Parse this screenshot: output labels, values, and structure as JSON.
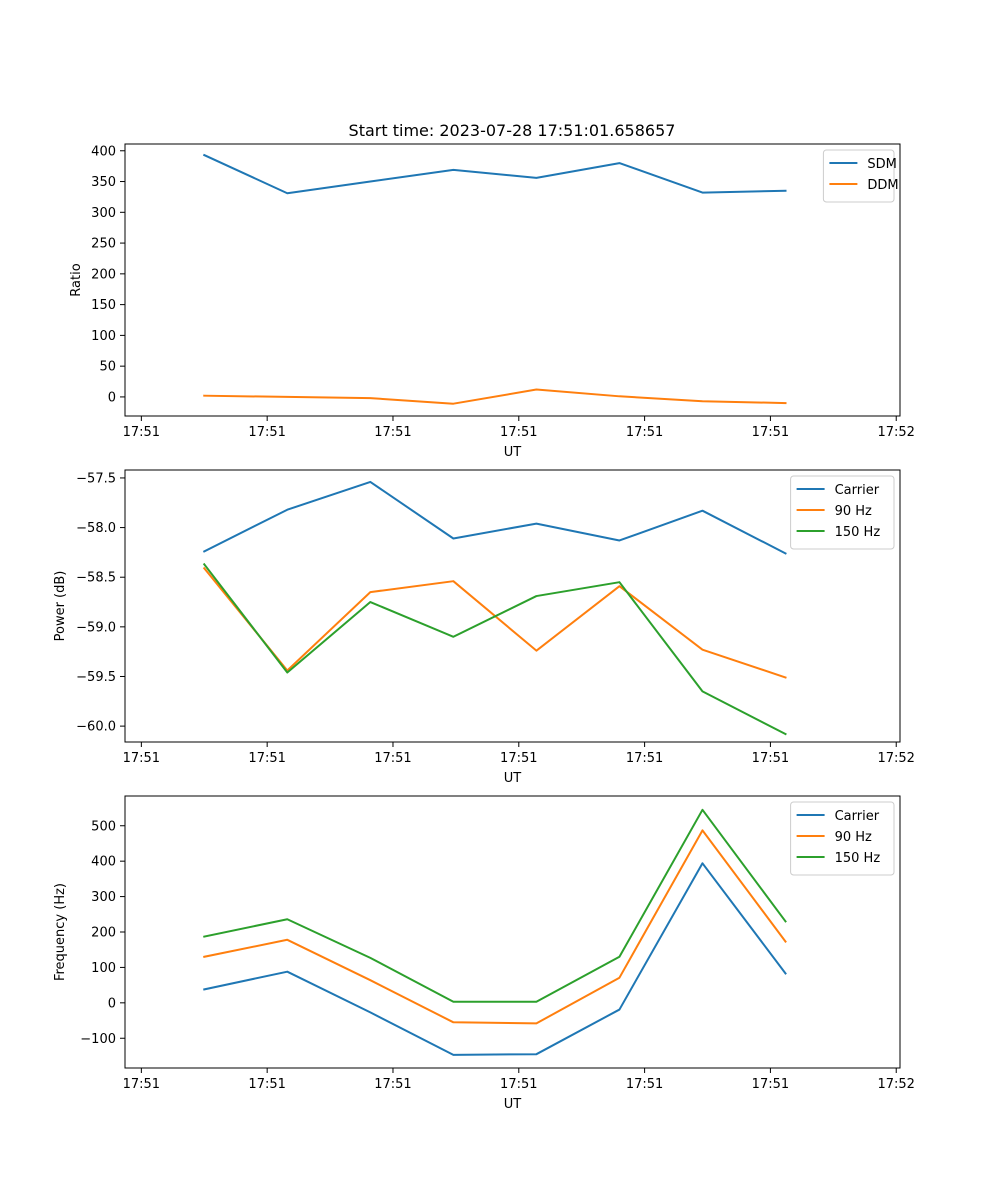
{
  "figure_title": "Start time: 2023-07-28 17:51:01.658657",
  "colors": {
    "blue": "#1f77b4",
    "orange": "#ff7f0e",
    "green": "#2ca02c"
  },
  "chart_data": [
    {
      "type": "line",
      "title": "Start time: 2023-07-28 17:51:01.658657",
      "xlabel": "UT",
      "ylabel": "Ratio",
      "x": [
        0.5,
        1.16,
        1.82,
        2.48,
        3.14,
        3.8,
        4.46,
        5.12
      ],
      "xlim": [
        -0.13,
        6.03
      ],
      "xticks": [
        0,
        1,
        2,
        3,
        4,
        5,
        6
      ],
      "xtick_labels": [
        "17:51",
        "17:51",
        "17:51",
        "17:51",
        "17:51",
        "17:51",
        "17:52"
      ],
      "ylim": [
        -31,
        411
      ],
      "yticks": [
        0,
        50,
        100,
        150,
        200,
        250,
        300,
        350,
        400
      ],
      "ytick_labels": [
        "0",
        "50",
        "100",
        "150",
        "200",
        "250",
        "300",
        "350",
        "400"
      ],
      "legend_position": "top-right",
      "series": [
        {
          "name": "SDM",
          "color": "#1f77b4",
          "values": [
            393,
            331,
            350,
            369,
            356,
            380,
            332,
            335
          ]
        },
        {
          "name": "DDM",
          "color": "#ff7f0e",
          "values": [
            2,
            0,
            -2,
            -11,
            12,
            1,
            -7,
            -10
          ]
        }
      ]
    },
    {
      "type": "line",
      "xlabel": "UT",
      "ylabel": "Power (dB)",
      "x": [
        0.5,
        1.16,
        1.82,
        2.48,
        3.14,
        3.8,
        4.46,
        5.12
      ],
      "xlim": [
        -0.13,
        6.03
      ],
      "xticks": [
        0,
        1,
        2,
        3,
        4,
        5,
        6
      ],
      "xtick_labels": [
        "17:51",
        "17:51",
        "17:51",
        "17:51",
        "17:51",
        "17:51",
        "17:52"
      ],
      "ylim": [
        -60.16,
        -57.42
      ],
      "yticks": [
        -60.0,
        -59.5,
        -59.0,
        -58.5,
        -58.0,
        -57.5
      ],
      "ytick_labels": [
        "−60.0",
        "−59.5",
        "−59.0",
        "−58.5",
        "−58.0",
        "−57.5"
      ],
      "legend_position": "top-right",
      "series": [
        {
          "name": "Carrier",
          "color": "#1f77b4",
          "values": [
            -58.24,
            -57.82,
            -57.54,
            -58.11,
            -57.96,
            -58.13,
            -57.83,
            -58.26
          ]
        },
        {
          "name": "90 Hz",
          "color": "#ff7f0e",
          "values": [
            -58.41,
            -59.44,
            -58.65,
            -58.54,
            -59.24,
            -58.59,
            -59.23,
            -59.51
          ]
        },
        {
          "name": "150 Hz",
          "color": "#2ca02c",
          "values": [
            -58.37,
            -59.46,
            -58.75,
            -59.1,
            -58.69,
            -58.55,
            -59.65,
            -60.08
          ]
        }
      ]
    },
    {
      "type": "line",
      "xlabel": "UT",
      "ylabel": "Frequency (Hz)",
      "x": [
        0.5,
        1.16,
        1.82,
        2.48,
        3.14,
        3.8,
        4.46,
        5.12
      ],
      "xlim": [
        -0.13,
        6.03
      ],
      "xticks": [
        0,
        1,
        2,
        3,
        4,
        5,
        6
      ],
      "xtick_labels": [
        "17:51",
        "17:51",
        "17:51",
        "17:51",
        "17:51",
        "17:51",
        "17:52"
      ],
      "ylim": [
        -184,
        584
      ],
      "yticks": [
        -100,
        0,
        100,
        200,
        300,
        400,
        500
      ],
      "ytick_labels": [
        "−100",
        "0",
        "100",
        "200",
        "300",
        "400",
        "500"
      ],
      "legend_position": "top-right",
      "series": [
        {
          "name": "Carrier",
          "color": "#1f77b4",
          "values": [
            38,
            88,
            -27,
            -147,
            -145,
            -19,
            394,
            83
          ]
        },
        {
          "name": "90 Hz",
          "color": "#ff7f0e",
          "values": [
            130,
            178,
            64,
            -55,
            -58,
            71,
            487,
            173
          ]
        },
        {
          "name": "150 Hz",
          "color": "#2ca02c",
          "values": [
            187,
            236,
            127,
            3,
            3,
            130,
            545,
            230
          ]
        }
      ]
    }
  ]
}
